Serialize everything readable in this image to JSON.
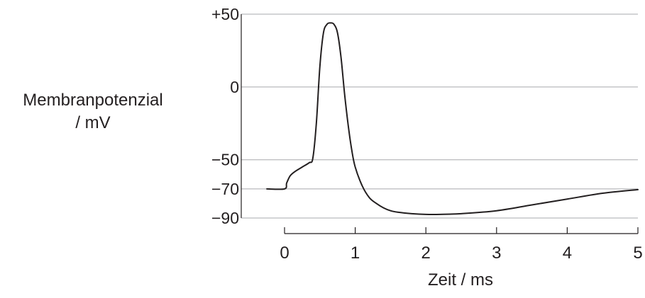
{
  "chart_data": {
    "type": "line",
    "title": "",
    "xlabel": "Zeit / ms",
    "ylabel_line1": "Membranpotenzial",
    "ylabel_line2": "/ mV",
    "xlim": [
      -0.25,
      5.0
    ],
    "ylim": [
      -90,
      50
    ],
    "x_ticks": [
      0,
      1,
      2,
      3,
      4,
      5
    ],
    "x_tick_labels": [
      "0",
      "1",
      "2",
      "3",
      "4",
      "5"
    ],
    "y_ticks": [
      50,
      0,
      -50,
      -70,
      -90
    ],
    "y_tick_labels": [
      "+50",
      "0",
      "−50",
      "−70",
      "−90"
    ],
    "grid": "horizontal at y ticks",
    "colors": {
      "line": "#231f20",
      "grid": "#a7a9ac",
      "axis": "#231f20",
      "text": "#231f20"
    },
    "series": [
      {
        "x": [
          -0.25,
          0.0,
          0.03,
          0.08,
          0.15,
          0.25,
          0.35,
          0.4,
          0.45,
          0.5,
          0.55,
          0.6,
          0.65,
          0.7,
          0.75,
          0.8,
          0.85,
          0.9,
          0.95,
          1.0,
          1.1,
          1.2,
          1.3,
          1.4,
          1.5,
          1.6,
          1.8,
          2.0,
          2.2,
          2.5,
          3.0,
          3.5,
          4.0,
          4.5,
          5.0
        ],
        "y": [
          -70,
          -70,
          -66,
          -61,
          -58,
          -55,
          -52,
          -49,
          -25,
          14,
          37,
          43,
          44,
          43,
          37,
          20,
          -5,
          -26,
          -43,
          -55,
          -68,
          -76,
          -80,
          -83,
          -85,
          -86,
          -87,
          -87.5,
          -87.5,
          -87,
          -85,
          -81,
          -77,
          -73,
          -70.5
        ]
      }
    ]
  }
}
